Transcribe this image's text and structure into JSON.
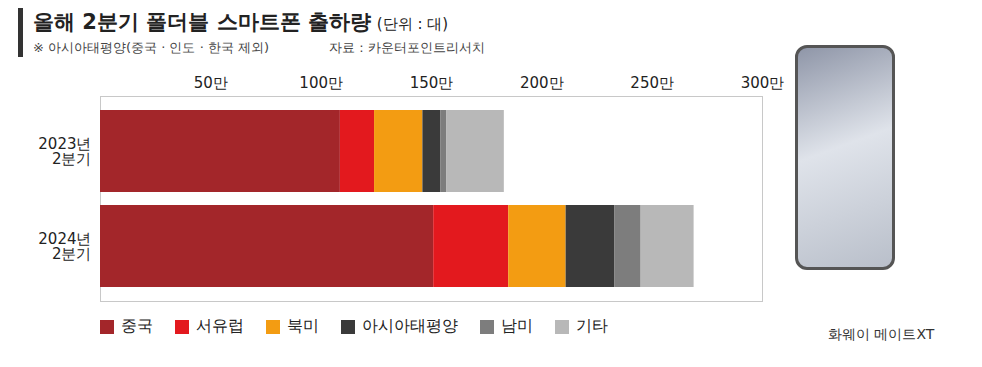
{
  "chart_data": {
    "type": "bar",
    "orientation": "horizontal",
    "stacked": true,
    "title": "올해 2분기 폴더블 스마트폰 출하량",
    "unit": "(단위 : 대)",
    "subtitle": "※ 아시아태평양(중국 · 인도 · 한국 제외)",
    "source": "자료 : 카운터포인트리서치",
    "caption": "화웨이 메이트XT",
    "categories": [
      "2023년\n2분기",
      "2024년\n2분기"
    ],
    "series": [
      {
        "name": "중국",
        "color": "#a3262a",
        "values": [
          108.7,
          151
        ]
      },
      {
        "name": "서유럽",
        "color": "#e3191e",
        "values": [
          15.5,
          34
        ]
      },
      {
        "name": "북미",
        "color": "#f39c12",
        "values": [
          21.9,
          26
        ]
      },
      {
        "name": "아시아태평양",
        "color": "#3a3a3a",
        "values": [
          8.2,
          22
        ]
      },
      {
        "name": "남미",
        "color": "#7d7d7d",
        "values": [
          2.7,
          12
        ]
      },
      {
        "name": "기타",
        "color": "#b8b8b8",
        "values": [
          26,
          24
        ]
      }
    ],
    "xlim": [
      0,
      300
    ],
    "xticks": [
      {
        "value": 50,
        "label": "50만"
      },
      {
        "value": 100,
        "label": "100만"
      },
      {
        "value": 150,
        "label": "150만"
      },
      {
        "value": 200,
        "label": "200만"
      },
      {
        "value": 250,
        "label": "250만"
      },
      {
        "value": 300,
        "label": "300만"
      }
    ],
    "legend": "bottom",
    "grid": false
  }
}
